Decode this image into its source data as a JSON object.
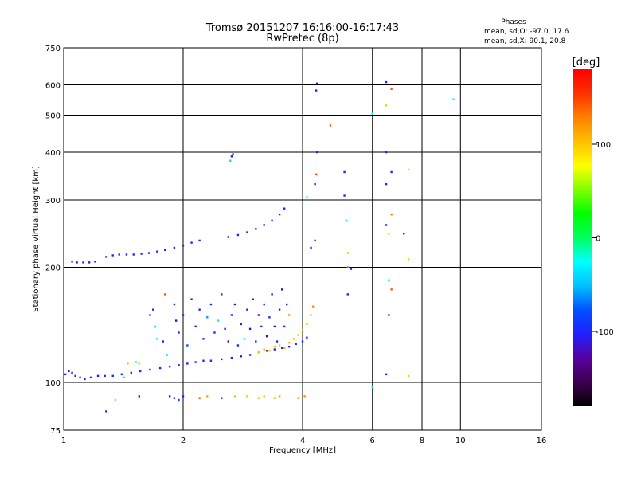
{
  "title": {
    "line1": "Tromsø 20151207 16:16:00-16:17:43",
    "line2": "RwPretec (8p)"
  },
  "phases_box": {
    "heading": "Phases",
    "line_o": "mean, sd,O: -97.0, 17.6",
    "line_x": "mean, sd,X:  90.1, 20.8"
  },
  "chart_data": {
    "type": "scatter",
    "xlabel": "Frequency [MHz]",
    "ylabel": "Stationary phase Virtual Height [km]",
    "x_scale": "log",
    "y_scale": "log",
    "xlim": [
      1,
      16
    ],
    "ylim": [
      75,
      750
    ],
    "x_ticks": [
      1,
      2,
      4,
      6,
      8,
      10,
      16
    ],
    "x_tick_labels": [
      "1",
      "2",
      "4",
      "6",
      "8",
      "10",
      "16"
    ],
    "y_ticks": [
      75,
      100,
      200,
      300,
      400,
      500,
      600,
      750
    ],
    "y_tick_labels": [
      "75",
      "100",
      "200",
      "300",
      "400",
      "500",
      "600",
      "750"
    ],
    "grid": true,
    "colorbar": {
      "label": "[deg]",
      "range": [
        -180,
        180
      ],
      "ticks": [
        100,
        0,
        -100
      ],
      "tick_labels": [
        "100",
        "0",
        "-100"
      ],
      "colors": [
        "#000000",
        "#3c0050",
        "#5a00a0",
        "#2020ff",
        "#0050ff",
        "#00c0ff",
        "#00ffff",
        "#00ff60",
        "#00ff00",
        "#80ff00",
        "#ffff00",
        "#ffc000",
        "#ff8000",
        "#ff3000",
        "#ff0000"
      ]
    },
    "points": [
      {
        "x": 1.01,
        "y": 105,
        "c": -100
      },
      {
        "x": 1.03,
        "y": 107,
        "c": -100
      },
      {
        "x": 1.05,
        "y": 106,
        "c": -110
      },
      {
        "x": 1.07,
        "y": 104,
        "c": -100
      },
      {
        "x": 1.1,
        "y": 103,
        "c": -95
      },
      {
        "x": 1.13,
        "y": 102,
        "c": -100
      },
      {
        "x": 1.17,
        "y": 103,
        "c": -100
      },
      {
        "x": 1.22,
        "y": 104,
        "c": -105
      },
      {
        "x": 1.27,
        "y": 104,
        "c": -100
      },
      {
        "x": 1.33,
        "y": 104,
        "c": -100
      },
      {
        "x": 1.4,
        "y": 105,
        "c": -100
      },
      {
        "x": 1.48,
        "y": 106,
        "c": -100
      },
      {
        "x": 1.56,
        "y": 107,
        "c": -100
      },
      {
        "x": 1.65,
        "y": 108,
        "c": -100
      },
      {
        "x": 1.75,
        "y": 109,
        "c": -100
      },
      {
        "x": 1.85,
        "y": 110,
        "c": -100
      },
      {
        "x": 1.95,
        "y": 111,
        "c": -100
      },
      {
        "x": 2.05,
        "y": 112,
        "c": -100
      },
      {
        "x": 2.15,
        "y": 113,
        "c": -100
      },
      {
        "x": 2.25,
        "y": 114,
        "c": -100
      },
      {
        "x": 2.35,
        "y": 114,
        "c": -100
      },
      {
        "x": 2.5,
        "y": 115,
        "c": -100
      },
      {
        "x": 2.65,
        "y": 116,
        "c": -100
      },
      {
        "x": 2.8,
        "y": 117,
        "c": -100
      },
      {
        "x": 2.95,
        "y": 118,
        "c": -100
      },
      {
        "x": 3.1,
        "y": 120,
        "c": -100
      },
      {
        "x": 3.25,
        "y": 121,
        "c": -100
      },
      {
        "x": 3.4,
        "y": 122,
        "c": -100
      },
      {
        "x": 3.55,
        "y": 123,
        "c": -100
      },
      {
        "x": 3.7,
        "y": 124,
        "c": -100
      },
      {
        "x": 3.85,
        "y": 126,
        "c": -100
      },
      {
        "x": 4.0,
        "y": 128,
        "c": -100
      },
      {
        "x": 4.1,
        "y": 131,
        "c": -100
      },
      {
        "x": 1.05,
        "y": 207,
        "c": -100
      },
      {
        "x": 1.08,
        "y": 206,
        "c": -100
      },
      {
        "x": 1.12,
        "y": 206,
        "c": -100
      },
      {
        "x": 1.16,
        "y": 206,
        "c": -100
      },
      {
        "x": 1.2,
        "y": 207,
        "c": -100
      },
      {
        "x": 1.28,
        "y": 213,
        "c": -100
      },
      {
        "x": 1.33,
        "y": 215,
        "c": -100
      },
      {
        "x": 1.38,
        "y": 216,
        "c": -100
      },
      {
        "x": 1.44,
        "y": 216,
        "c": -100
      },
      {
        "x": 1.5,
        "y": 216,
        "c": -100
      },
      {
        "x": 1.57,
        "y": 217,
        "c": -100
      },
      {
        "x": 1.64,
        "y": 218,
        "c": -100
      },
      {
        "x": 1.72,
        "y": 220,
        "c": -100
      },
      {
        "x": 1.8,
        "y": 222,
        "c": -100
      },
      {
        "x": 1.9,
        "y": 225,
        "c": -100
      },
      {
        "x": 2.0,
        "y": 228,
        "c": -100
      },
      {
        "x": 2.1,
        "y": 232,
        "c": -100
      },
      {
        "x": 2.2,
        "y": 235,
        "c": -100
      },
      {
        "x": 2.6,
        "y": 240,
        "c": -100
      },
      {
        "x": 2.75,
        "y": 243,
        "c": -100
      },
      {
        "x": 2.9,
        "y": 247,
        "c": -100
      },
      {
        "x": 3.05,
        "y": 252,
        "c": -100
      },
      {
        "x": 3.2,
        "y": 258,
        "c": -100
      },
      {
        "x": 3.35,
        "y": 265,
        "c": -100
      },
      {
        "x": 3.5,
        "y": 275,
        "c": -100
      },
      {
        "x": 3.6,
        "y": 285,
        "c": -100
      },
      {
        "x": 2.65,
        "y": 390,
        "c": -100
      },
      {
        "x": 2.67,
        "y": 395,
        "c": -90
      },
      {
        "x": 2.63,
        "y": 380,
        "c": -40
      },
      {
        "x": 1.28,
        "y": 84,
        "c": -100
      },
      {
        "x": 1.35,
        "y": 90,
        "c": 100
      },
      {
        "x": 1.55,
        "y": 92,
        "c": -100
      },
      {
        "x": 1.85,
        "y": 92,
        "c": -100
      },
      {
        "x": 1.9,
        "y": 91,
        "c": -100
      },
      {
        "x": 1.95,
        "y": 90,
        "c": -80
      },
      {
        "x": 2.0,
        "y": 92,
        "c": -100
      },
      {
        "x": 2.2,
        "y": 91,
        "c": 140
      },
      {
        "x": 2.3,
        "y": 92,
        "c": 110
      },
      {
        "x": 2.5,
        "y": 91,
        "c": -100
      },
      {
        "x": 2.7,
        "y": 92,
        "c": 100
      },
      {
        "x": 2.9,
        "y": 92,
        "c": 100
      },
      {
        "x": 3.1,
        "y": 91,
        "c": 100
      },
      {
        "x": 3.2,
        "y": 92,
        "c": 100
      },
      {
        "x": 3.4,
        "y": 91,
        "c": 100
      },
      {
        "x": 3.5,
        "y": 92,
        "c": 110
      },
      {
        "x": 3.9,
        "y": 91,
        "c": 120
      },
      {
        "x": 4.05,
        "y": 92,
        "c": 120
      },
      {
        "x": 1.42,
        "y": 103,
        "c": -30
      },
      {
        "x": 1.45,
        "y": 112,
        "c": 100
      },
      {
        "x": 1.52,
        "y": 113,
        "c": -10
      },
      {
        "x": 1.55,
        "y": 112,
        "c": 60
      },
      {
        "x": 1.65,
        "y": 150,
        "c": -100
      },
      {
        "x": 1.68,
        "y": 155,
        "c": -100
      },
      {
        "x": 1.7,
        "y": 140,
        "c": -20
      },
      {
        "x": 1.72,
        "y": 130,
        "c": -30
      },
      {
        "x": 1.78,
        "y": 128,
        "c": -100
      },
      {
        "x": 1.8,
        "y": 170,
        "c": 140
      },
      {
        "x": 1.82,
        "y": 118,
        "c": -50
      },
      {
        "x": 1.9,
        "y": 160,
        "c": -100
      },
      {
        "x": 1.92,
        "y": 145,
        "c": -130
      },
      {
        "x": 1.95,
        "y": 135,
        "c": -100
      },
      {
        "x": 2.0,
        "y": 150,
        "c": -100
      },
      {
        "x": 2.05,
        "y": 125,
        "c": -80
      },
      {
        "x": 2.1,
        "y": 165,
        "c": -100
      },
      {
        "x": 2.15,
        "y": 140,
        "c": -130
      },
      {
        "x": 2.2,
        "y": 155,
        "c": -100
      },
      {
        "x": 2.25,
        "y": 130,
        "c": -100
      },
      {
        "x": 2.3,
        "y": 148,
        "c": -60
      },
      {
        "x": 2.35,
        "y": 160,
        "c": -100
      },
      {
        "x": 2.4,
        "y": 135,
        "c": -100
      },
      {
        "x": 2.45,
        "y": 145,
        "c": -20
      },
      {
        "x": 2.5,
        "y": 170,
        "c": -100
      },
      {
        "x": 2.55,
        "y": 138,
        "c": -100
      },
      {
        "x": 2.6,
        "y": 128,
        "c": -130
      },
      {
        "x": 2.65,
        "y": 150,
        "c": -100
      },
      {
        "x": 2.7,
        "y": 160,
        "c": -130
      },
      {
        "x": 2.75,
        "y": 125,
        "c": -100
      },
      {
        "x": 2.8,
        "y": 142,
        "c": -100
      },
      {
        "x": 2.85,
        "y": 130,
        "c": -20
      },
      {
        "x": 2.9,
        "y": 155,
        "c": -100
      },
      {
        "x": 2.95,
        "y": 138,
        "c": -130
      },
      {
        "x": 3.0,
        "y": 165,
        "c": -100
      },
      {
        "x": 3.05,
        "y": 128,
        "c": -100
      },
      {
        "x": 3.1,
        "y": 150,
        "c": -130
      },
      {
        "x": 3.15,
        "y": 140,
        "c": -100
      },
      {
        "x": 3.2,
        "y": 160,
        "c": -100
      },
      {
        "x": 3.25,
        "y": 132,
        "c": -130
      },
      {
        "x": 3.3,
        "y": 148,
        "c": -100
      },
      {
        "x": 3.35,
        "y": 170,
        "c": -100
      },
      {
        "x": 3.4,
        "y": 140,
        "c": -130
      },
      {
        "x": 3.45,
        "y": 128,
        "c": -100
      },
      {
        "x": 3.5,
        "y": 155,
        "c": -100
      },
      {
        "x": 3.55,
        "y": 175,
        "c": -130
      },
      {
        "x": 3.6,
        "y": 140,
        "c": -100
      },
      {
        "x": 3.65,
        "y": 160,
        "c": -100
      },
      {
        "x": 3.7,
        "y": 150,
        "c": 120
      },
      {
        "x": 3.1,
        "y": 120,
        "c": 100
      },
      {
        "x": 3.2,
        "y": 122,
        "c": 110
      },
      {
        "x": 3.3,
        "y": 121,
        "c": 100
      },
      {
        "x": 3.4,
        "y": 124,
        "c": 100
      },
      {
        "x": 3.5,
        "y": 125,
        "c": 100
      },
      {
        "x": 3.6,
        "y": 123,
        "c": 110
      },
      {
        "x": 3.7,
        "y": 127,
        "c": 100
      },
      {
        "x": 3.8,
        "y": 130,
        "c": 100
      },
      {
        "x": 3.9,
        "y": 133,
        "c": 100
      },
      {
        "x": 4.0,
        "y": 137,
        "c": 100
      },
      {
        "x": 4.1,
        "y": 142,
        "c": 100
      },
      {
        "x": 4.2,
        "y": 150,
        "c": 100
      },
      {
        "x": 4.25,
        "y": 158,
        "c": 120
      },
      {
        "x": 4.2,
        "y": 225,
        "c": -100
      },
      {
        "x": 4.3,
        "y": 235,
        "c": -100
      },
      {
        "x": 4.35,
        "y": 605,
        "c": -100
      },
      {
        "x": 4.33,
        "y": 580,
        "c": -100
      },
      {
        "x": 4.35,
        "y": 400,
        "c": -100
      },
      {
        "x": 4.33,
        "y": 350,
        "c": 150
      },
      {
        "x": 4.3,
        "y": 330,
        "c": -100
      },
      {
        "x": 4.1,
        "y": 305,
        "c": -20
      },
      {
        "x": 4.7,
        "y": 470,
        "c": 140
      },
      {
        "x": 5.1,
        "y": 355,
        "c": -100
      },
      {
        "x": 5.1,
        "y": 308,
        "c": -100
      },
      {
        "x": 5.15,
        "y": 265,
        "c": -20
      },
      {
        "x": 5.2,
        "y": 218,
        "c": 100
      },
      {
        "x": 5.2,
        "y": 200,
        "c": 140
      },
      {
        "x": 5.3,
        "y": 198,
        "c": -100
      },
      {
        "x": 5.2,
        "y": 170,
        "c": -100
      },
      {
        "x": 6.0,
        "y": 505,
        "c": -30
      },
      {
        "x": 6.5,
        "y": 610,
        "c": -100
      },
      {
        "x": 6.7,
        "y": 585,
        "c": 140
      },
      {
        "x": 6.5,
        "y": 530,
        "c": 100
      },
      {
        "x": 6.5,
        "y": 400,
        "c": -100
      },
      {
        "x": 6.7,
        "y": 355,
        "c": -100
      },
      {
        "x": 6.5,
        "y": 330,
        "c": -100
      },
      {
        "x": 6.7,
        "y": 275,
        "c": 130
      },
      {
        "x": 6.5,
        "y": 258,
        "c": -100
      },
      {
        "x": 6.6,
        "y": 245,
        "c": 100
      },
      {
        "x": 6.6,
        "y": 185,
        "c": -40
      },
      {
        "x": 6.7,
        "y": 175,
        "c": 140
      },
      {
        "x": 6.6,
        "y": 150,
        "c": -100
      },
      {
        "x": 6.5,
        "y": 105,
        "c": -100
      },
      {
        "x": 7.2,
        "y": 245,
        "c": -100
      },
      {
        "x": 7.4,
        "y": 360,
        "c": 100
      },
      {
        "x": 7.4,
        "y": 210,
        "c": 100
      },
      {
        "x": 7.4,
        "y": 104,
        "c": 100
      },
      {
        "x": 9.6,
        "y": 550,
        "c": -20
      },
      {
        "x": 6.0,
        "y": 97,
        "c": -30
      }
    ]
  }
}
